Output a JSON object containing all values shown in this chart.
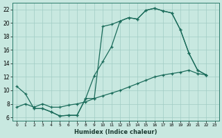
{
  "xlabel": "Humidex (Indice chaleur)",
  "bg_color": "#c8e8e0",
  "grid_color": "#a0ccc4",
  "line_color": "#1a6b5a",
  "xlim": [
    -0.5,
    23.5
  ],
  "ylim": [
    5.5,
    23.0
  ],
  "xticks": [
    0,
    1,
    2,
    3,
    4,
    5,
    6,
    7,
    8,
    9,
    10,
    11,
    12,
    13,
    14,
    15,
    16,
    17,
    18,
    19,
    20,
    21,
    22,
    23
  ],
  "yticks": [
    6,
    8,
    10,
    12,
    14,
    16,
    18,
    20,
    22
  ],
  "curve1_x": [
    0,
    1,
    2,
    3,
    4,
    5,
    6,
    7,
    8,
    9,
    10,
    11,
    12,
    13,
    14,
    15,
    16,
    17,
    18,
    19,
    20,
    21,
    22
  ],
  "curve1_y": [
    10.6,
    9.5,
    7.3,
    7.3,
    6.8,
    6.2,
    6.3,
    6.3,
    8.8,
    8.8,
    19.5,
    19.8,
    20.3,
    20.8,
    20.6,
    21.9,
    22.2,
    21.8,
    21.5,
    19.0,
    15.5,
    13.0,
    12.3
  ],
  "curve2_x": [
    2,
    3,
    4,
    5,
    6,
    7,
    8,
    9,
    10,
    11,
    12,
    13,
    14,
    15,
    16,
    17,
    18,
    19,
    20,
    21,
    22
  ],
  "curve2_y": [
    7.3,
    7.3,
    6.8,
    6.2,
    6.3,
    6.3,
    8.8,
    12.2,
    14.3,
    16.5,
    20.3,
    20.8,
    20.6,
    21.9,
    22.2,
    21.8,
    21.5,
    19.0,
    15.5,
    13.0,
    12.3
  ],
  "curve3_x": [
    0,
    1,
    2,
    3,
    4,
    5,
    6,
    7,
    8,
    9,
    10,
    11,
    12,
    13,
    14,
    15,
    16,
    17,
    18,
    19,
    20,
    21,
    22
  ],
  "curve3_y": [
    7.5,
    8.0,
    7.5,
    8.0,
    7.5,
    7.5,
    7.8,
    8.0,
    8.3,
    8.8,
    9.2,
    9.6,
    10.0,
    10.5,
    11.0,
    11.5,
    12.0,
    12.3,
    12.5,
    12.7,
    13.0,
    12.5,
    12.3
  ]
}
